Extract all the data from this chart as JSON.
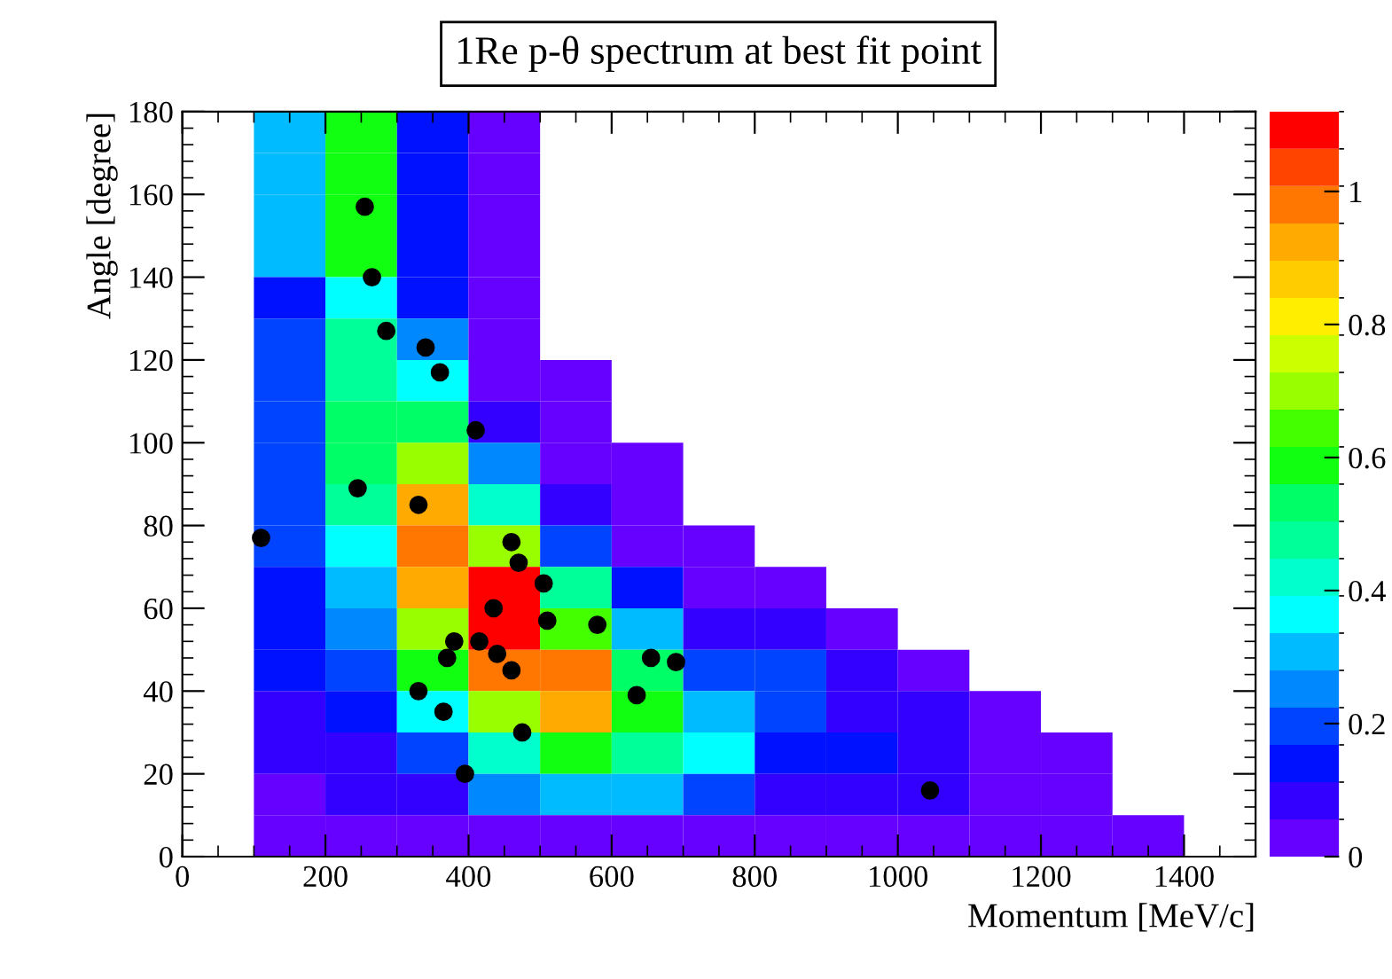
{
  "chart_data": {
    "type": "heatmap",
    "title": "1Re p-θ spectrum at best fit point",
    "xlabel": "Momentum [MeV/c]",
    "ylabel": "Angle [degree]",
    "x": [
      150,
      250,
      350,
      450,
      550,
      650,
      750,
      850,
      950,
      1050,
      1150,
      1250,
      1350
    ],
    "cells": [
      [
        0.31,
        0.6,
        0.14,
        0.03,
        null,
        null,
        null,
        null,
        null,
        null,
        null,
        null,
        null
      ],
      [
        0.31,
        0.6,
        0.14,
        0.03,
        null,
        null,
        null,
        null,
        null,
        null,
        null,
        null,
        null
      ],
      [
        0.31,
        0.6,
        0.14,
        0.03,
        null,
        null,
        null,
        null,
        null,
        null,
        null,
        null,
        null
      ],
      [
        0.31,
        0.6,
        0.14,
        0.03,
        null,
        null,
        null,
        null,
        null,
        null,
        null,
        null,
        null
      ],
      [
        0.14,
        0.37,
        0.14,
        0.03,
        null,
        null,
        null,
        null,
        null,
        null,
        null,
        null,
        null
      ],
      [
        0.2,
        0.47,
        0.25,
        0.03,
        null,
        null,
        null,
        null,
        null,
        null,
        null,
        null,
        null
      ],
      [
        0.2,
        0.47,
        0.37,
        0.03,
        0.03,
        null,
        null,
        null,
        null,
        null,
        null,
        null,
        null
      ],
      [
        0.2,
        0.53,
        0.53,
        0.08,
        0.03,
        null,
        null,
        null,
        null,
        null,
        null,
        null,
        null
      ],
      [
        0.2,
        0.53,
        0.7,
        0.25,
        0.03,
        0.03,
        null,
        null,
        null,
        null,
        null,
        null,
        null
      ],
      [
        0.2,
        0.5,
        0.92,
        0.42,
        0.08,
        0.03,
        null,
        null,
        null,
        null,
        null,
        null,
        null
      ],
      [
        0.2,
        0.37,
        0.98,
        0.7,
        0.2,
        0.03,
        0.03,
        null,
        null,
        null,
        null,
        null,
        null
      ],
      [
        0.14,
        0.31,
        0.92,
        1.09,
        0.45,
        0.14,
        0.03,
        0.03,
        null,
        null,
        null,
        null,
        null
      ],
      [
        0.14,
        0.25,
        0.7,
        1.09,
        0.64,
        0.31,
        0.1,
        0.08,
        0.03,
        null,
        null,
        null,
        null
      ],
      [
        0.14,
        0.2,
        0.58,
        0.98,
        0.98,
        0.53,
        0.2,
        0.2,
        0.08,
        0.03,
        null,
        null,
        null
      ],
      [
        0.08,
        0.14,
        0.37,
        0.7,
        0.92,
        0.58,
        0.31,
        0.2,
        0.1,
        0.08,
        0.03,
        null,
        null
      ],
      [
        0.08,
        0.08,
        0.2,
        0.42,
        0.58,
        0.5,
        0.37,
        0.14,
        0.14,
        0.1,
        0.03,
        0.03,
        null
      ],
      [
        0.03,
        0.08,
        0.08,
        0.25,
        0.28,
        0.28,
        0.2,
        0.08,
        0.08,
        0.1,
        0.03,
        0.03,
        null
      ],
      [
        0.03,
        0.03,
        0.03,
        0.03,
        0.03,
        0.03,
        0.03,
        0.03,
        0.03,
        0.03,
        0.03,
        0.03,
        0.03
      ]
    ],
    "clim": [
      0,
      1.12
    ],
    "cticks": [
      0,
      0.2,
      0.4,
      0.6,
      0.8,
      1
    ],
    "xlim": [
      0,
      1500
    ],
    "xticks": [
      0,
      200,
      400,
      600,
      800,
      1000,
      1200,
      1400
    ],
    "ylim": [
      0,
      180
    ],
    "yticks": [
      0,
      20,
      40,
      60,
      80,
      100,
      120,
      140,
      160,
      180
    ],
    "series": [
      {
        "type": "scatter",
        "color": "#000000",
        "marker": "circle",
        "x": [
          110,
          245,
          330,
          460,
          470,
          505,
          435,
          510,
          380,
          415,
          370,
          440,
          460,
          330,
          365,
          475,
          395,
          255,
          265,
          285,
          340,
          360,
          410,
          580,
          655,
          690,
          635,
          1045
        ],
        "values": [
          77,
          89,
          85,
          76,
          71,
          66,
          60,
          57,
          52,
          52,
          48,
          49,
          45,
          40,
          35,
          30,
          20,
          157,
          140,
          127,
          123,
          117,
          103,
          56,
          48,
          47,
          39,
          16
        ]
      }
    ]
  }
}
